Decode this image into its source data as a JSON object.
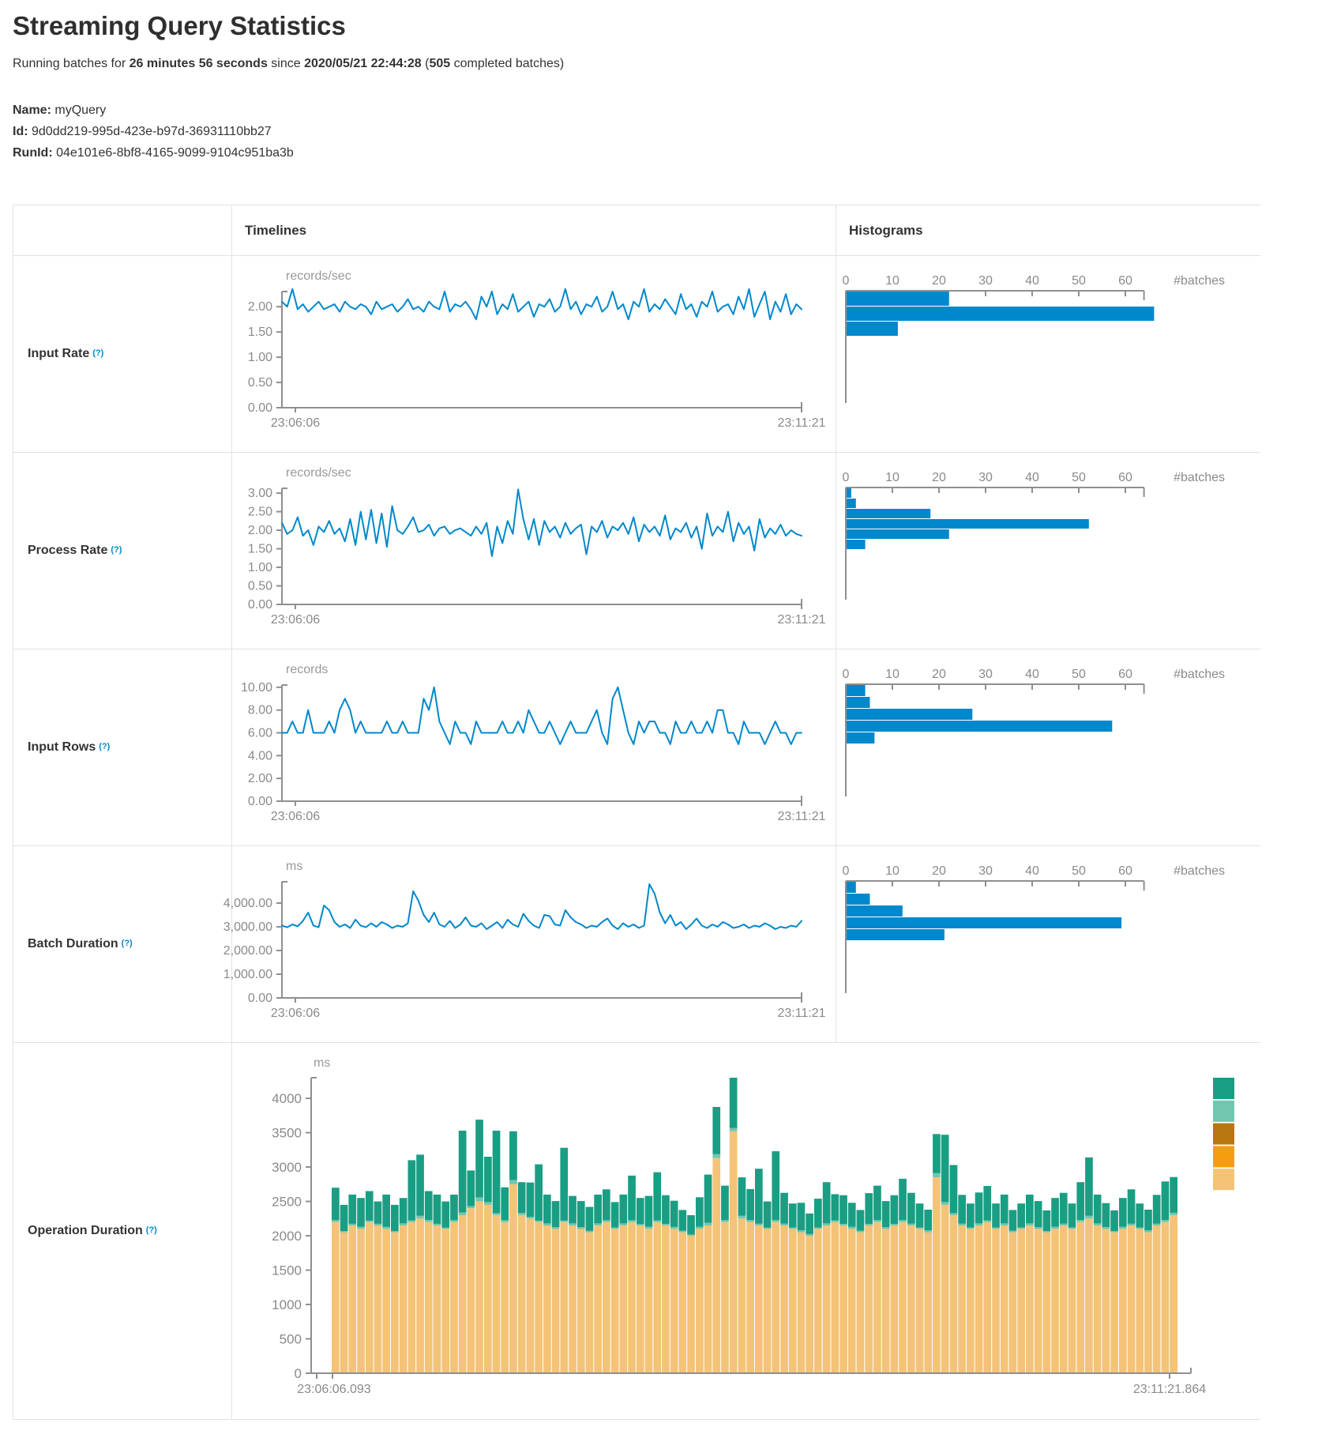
{
  "page": {
    "title": "Streaming Query Statistics",
    "running_prefix": "Running batches for ",
    "duration": "26 minutes 56 seconds",
    "since": " since ",
    "start_time": "2020/05/21 22:44:28",
    "paren_open": " (",
    "completed_batches": "505",
    "completed_suffix": " completed batches)",
    "name_label": "Name:",
    "name_value": "myQuery",
    "id_label": "Id:",
    "id_value": "9d0dd219-995d-423e-b97d-36931110bb27",
    "runid_label": "RunId:",
    "runid_value": "04e101e6-8bf8-4165-9099-9104c951ba3b"
  },
  "colors": {
    "accent_blue": "#0088cc",
    "axis": "#8f8f8f",
    "tick_text": "#8a8a8a",
    "unit_text": "#999999",
    "border": "#e2e2e2",
    "text": "#333333",
    "help": "#0088cc",
    "op_green": "#1a9e83",
    "op_light_teal": "#72c6b0",
    "op_dark_gold": "#b87711",
    "op_orange": "#f49d0e",
    "op_tan": "#f4c377"
  },
  "table": {
    "col_timelines": "Timelines",
    "col_histograms": "Histograms"
  },
  "hist": {
    "ticks": [
      0,
      10,
      20,
      30,
      40,
      50,
      60
    ],
    "axis_label": "#batches"
  },
  "timeline_x": {
    "start": "23:06:06",
    "end": "23:11:21"
  },
  "rows": [
    {
      "label": "Input Rate",
      "help": "(?)",
      "unit": "records/sec",
      "ymax": 2.3,
      "yticks": [
        {
          "v": 2,
          "label": "2.00"
        },
        {
          "v": 1.5,
          "label": "1.50"
        },
        {
          "v": 1,
          "label": "1.00"
        },
        {
          "v": 0.5,
          "label": "0.50"
        },
        {
          "v": 0,
          "label": "0.00"
        }
      ],
      "timeline": {
        "type": "line",
        "values": [
          2.1,
          2.0,
          2.35,
          1.95,
          2.05,
          1.9,
          2.0,
          2.1,
          1.95,
          2.0,
          2.05,
          1.9,
          2.1,
          2.0,
          1.95,
          2.05,
          2.0,
          1.85,
          2.1,
          1.95,
          2.0,
          2.05,
          1.9,
          2.0,
          2.15,
          1.95,
          2.0,
          1.9,
          2.1,
          2.0,
          1.95,
          2.3,
          1.9,
          2.05,
          2.0,
          2.1,
          1.95,
          1.75,
          2.2,
          2.0,
          2.3,
          1.85,
          2.05,
          1.95,
          2.25,
          1.9,
          2.0,
          2.1,
          1.8,
          2.05,
          2.0,
          2.15,
          1.9,
          2.0,
          2.35,
          1.95,
          2.1,
          1.85,
          2.05,
          2.0,
          2.2,
          1.9,
          2.0,
          2.3,
          1.95,
          2.05,
          1.75,
          2.1,
          2.0,
          2.35,
          1.9,
          2.05,
          1.95,
          2.15,
          2.0,
          1.85,
          2.25,
          1.95,
          2.05,
          1.8,
          2.1,
          2.0,
          2.3,
          1.9,
          2.0,
          2.05,
          1.85,
          2.2,
          1.95,
          2.35,
          1.8,
          2.05,
          2.3,
          1.75,
          2.1,
          1.9,
          2.25,
          1.85,
          2.05,
          1.95
        ]
      },
      "histogram": {
        "type": "bar",
        "bins": [
          22,
          66,
          11
        ]
      }
    },
    {
      "label": "Process Rate",
      "help": "(?)",
      "unit": "records/sec",
      "ymax": 3.13,
      "yticks": [
        {
          "v": 3,
          "label": "3.00"
        },
        {
          "v": 2.5,
          "label": "2.50"
        },
        {
          "v": 2,
          "label": "2.00"
        },
        {
          "v": 1.5,
          "label": "1.50"
        },
        {
          "v": 1,
          "label": "1.00"
        },
        {
          "v": 0.5,
          "label": "0.50"
        },
        {
          "v": 0,
          "label": "0.00"
        }
      ],
      "timeline": {
        "type": "line",
        "values": [
          2.2,
          1.9,
          2.0,
          2.35,
          1.85,
          2.0,
          1.6,
          2.1,
          1.95,
          2.25,
          1.9,
          2.05,
          1.7,
          2.3,
          1.6,
          2.5,
          1.75,
          2.55,
          1.65,
          2.45,
          1.55,
          2.65,
          2.0,
          1.9,
          2.1,
          2.35,
          1.95,
          2.0,
          2.15,
          1.85,
          2.05,
          2.1,
          1.9,
          2.0,
          2.05,
          1.95,
          1.85,
          2.1,
          1.9,
          2.2,
          1.3,
          2.1,
          1.65,
          2.25,
          1.9,
          3.1,
          2.3,
          1.75,
          2.3,
          1.6,
          2.25,
          1.95,
          2.1,
          1.8,
          2.2,
          1.9,
          2.05,
          2.15,
          1.35,
          2.1,
          1.95,
          2.25,
          1.8,
          2.1,
          2.0,
          2.2,
          1.9,
          2.35,
          1.7,
          2.15,
          1.95,
          2.1,
          1.85,
          2.4,
          1.75,
          2.05,
          1.95,
          2.2,
          1.8,
          2.1,
          1.5,
          2.45,
          1.85,
          2.1,
          1.95,
          2.5,
          1.7,
          2.2,
          1.9,
          2.1,
          1.45,
          2.3,
          1.8,
          2.05,
          1.9,
          2.15,
          1.85,
          2.0,
          1.9,
          1.85
        ]
      },
      "histogram": {
        "type": "bar",
        "bins": [
          1,
          2,
          18,
          52,
          22,
          4
        ]
      }
    },
    {
      "label": "Input Rows",
      "help": "(?)",
      "unit": "records",
      "ymax": 10.2,
      "yticks": [
        {
          "v": 10,
          "label": "10.00"
        },
        {
          "v": 8,
          "label": "8.00"
        },
        {
          "v": 6,
          "label": "6.00"
        },
        {
          "v": 4,
          "label": "4.00"
        },
        {
          "v": 2,
          "label": "2.00"
        },
        {
          "v": 0,
          "label": "0.00"
        }
      ],
      "timeline": {
        "type": "line",
        "values": [
          6,
          6,
          7,
          6,
          6,
          8,
          6,
          6,
          6,
          7,
          6,
          8,
          9,
          8,
          6,
          7,
          6,
          6,
          6,
          6,
          7,
          6,
          6,
          7,
          6,
          6,
          6,
          9,
          8,
          10,
          7,
          6,
          5,
          7,
          6,
          6,
          5,
          7,
          6,
          6,
          6,
          6,
          7,
          6,
          6,
          7,
          6,
          8,
          7,
          6,
          6,
          7,
          6,
          5,
          6,
          7,
          6,
          6,
          6,
          7,
          8,
          6,
          5,
          9,
          10,
          8,
          6,
          5,
          7,
          6,
          7,
          7,
          6,
          6,
          5,
          7,
          6,
          6,
          7,
          6,
          6,
          7,
          6,
          8,
          8,
          6,
          6,
          5,
          7,
          6,
          6,
          6,
          5,
          6,
          7,
          6,
          6,
          5,
          6,
          6
        ]
      },
      "histogram": {
        "type": "bar",
        "bins": [
          4,
          5,
          27,
          57,
          6
        ]
      }
    },
    {
      "label": "Batch Duration",
      "help": "(?)",
      "unit": "ms",
      "ymax": 4900,
      "yticks": [
        {
          "v": 4000,
          "label": "4,000.00"
        },
        {
          "v": 3000,
          "label": "3,000.00"
        },
        {
          "v": 2000,
          "label": "2,000.00"
        },
        {
          "v": 1000,
          "label": "1,000.00"
        },
        {
          "v": 0,
          "label": "0.00"
        }
      ],
      "timeline": {
        "type": "line",
        "values": [
          3050,
          2980,
          3100,
          3020,
          3250,
          3600,
          3050,
          2980,
          3900,
          3700,
          3200,
          3000,
          3100,
          2950,
          3300,
          3050,
          2980,
          3150,
          3000,
          3200,
          3100,
          2950,
          3050,
          3000,
          3150,
          4500,
          4100,
          3500,
          3200,
          3600,
          3100,
          3000,
          3250,
          2950,
          3100,
          3400,
          3050,
          3000,
          3150,
          2900,
          3050,
          3200,
          2950,
          3300,
          3100,
          3000,
          3550,
          3250,
          3050,
          2950,
          3500,
          3450,
          3100,
          3050,
          3700,
          3400,
          3200,
          3100,
          2950,
          3050,
          3000,
          3200,
          3350,
          3050,
          2900,
          3150,
          3000,
          3100,
          2950,
          3050,
          4800,
          4400,
          3600,
          3150,
          3500,
          3050,
          3200,
          2900,
          3100,
          3350,
          3050,
          2950,
          3100,
          3000,
          3200,
          3100,
          2950,
          3000,
          3100,
          2950,
          3050,
          3000,
          3150,
          3050,
          2900,
          3000,
          2950,
          3050,
          3000,
          3250
        ]
      },
      "histogram": {
        "type": "bar",
        "bins": [
          2,
          5,
          12,
          59,
          21
        ]
      }
    }
  ],
  "operation_duration": {
    "label": "Operation Duration",
    "help": "(?)",
    "unit": "ms",
    "ymax": 4300,
    "yticks": [
      {
        "v": 4000,
        "label": "4000"
      },
      {
        "v": 3500,
        "label": "3500"
      },
      {
        "v": 3000,
        "label": "3000"
      },
      {
        "v": 2500,
        "label": "2500"
      },
      {
        "v": 2000,
        "label": "2000"
      },
      {
        "v": 1500,
        "label": "1500"
      },
      {
        "v": 1000,
        "label": "1000"
      },
      {
        "v": 500,
        "label": "500"
      },
      {
        "v": 0,
        "label": "0"
      }
    ],
    "x_start": "23:06:06.093",
    "x_end": "23:11:21.864",
    "chart_type": "stacked-bar",
    "series": [
      {
        "name": "bottom-segment",
        "color_key": "op_tan",
        "values": [
          2200,
          2050,
          2150,
          2100,
          2200,
          2150,
          2100,
          2050,
          2150,
          2200,
          2250,
          2200,
          2150,
          2100,
          2200,
          2300,
          2400,
          2500,
          2450,
          2300,
          2200,
          2750,
          2300,
          2250,
          2200,
          2150,
          2100,
          2200,
          2150,
          2100,
          2050,
          2150,
          2200,
          2100,
          2150,
          2200,
          2150,
          2100,
          2200,
          2150,
          2100,
          2050,
          2000,
          2100,
          2150,
          3130,
          2200,
          3520,
          2250,
          2200,
          2150,
          2100,
          2200,
          2150,
          2100,
          2050,
          2000,
          2100,
          2150,
          2200,
          2150,
          2100,
          2050,
          2150,
          2200,
          2100,
          2150,
          2200,
          2150,
          2100,
          2050,
          2850,
          2450,
          2300,
          2150,
          2100,
          2150,
          2200,
          2100,
          2150,
          2050,
          2100,
          2150,
          2100,
          2050,
          2100,
          2150,
          2100,
          2200,
          2250,
          2150,
          2100,
          2050,
          2100,
          2150,
          2100,
          2050,
          2150,
          2200,
          2300
        ]
      },
      {
        "name": "middle-segment",
        "color_key": "op_light_teal",
        "values": [
          30,
          20,
          25,
          30,
          20,
          25,
          30,
          20,
          30,
          25,
          40,
          30,
          25,
          20,
          30,
          40,
          30,
          60,
          40,
          30,
          25,
          60,
          30,
          25,
          20,
          30,
          25,
          20,
          30,
          25,
          20,
          30,
          25,
          20,
          30,
          25,
          20,
          30,
          25,
          20,
          30,
          25,
          20,
          30,
          40,
          60,
          30,
          50,
          40,
          30,
          25,
          20,
          30,
          25,
          20,
          30,
          25,
          20,
          30,
          25,
          20,
          30,
          25,
          20,
          30,
          25,
          20,
          30,
          25,
          20,
          30,
          60,
          40,
          30,
          25,
          20,
          30,
          25,
          20,
          30,
          25,
          20,
          30,
          25,
          20,
          30,
          25,
          20,
          30,
          40,
          30,
          25,
          20,
          30,
          25,
          20,
          30,
          25,
          30,
          35
        ]
      },
      {
        "name": "top-segment",
        "color_key": "op_green",
        "values": [
          470,
          380,
          425,
          420,
          430,
          325,
          470,
          380,
          370,
          875,
          890,
          420,
          425,
          380,
          370,
          1190,
          520,
          1130,
          660,
          1200,
          480,
          710,
          450,
          500,
          820,
          420,
          380,
          1060,
          400,
          380,
          350,
          420,
          450,
          370,
          420,
          650,
          380,
          450,
          700,
          420,
          380,
          300,
          280,
          430,
          700,
          685,
          500,
          730,
          560,
          450,
          800,
          380,
          1000,
          450,
          350,
          400,
          300,
          420,
          600,
          380,
          420,
          350,
          300,
          450,
          500,
          380,
          420,
          600,
          450,
          350,
          300,
          570,
          980,
          700,
          420,
          350,
          450,
          500,
          350,
          420,
          300,
          350,
          420,
          380,
          300,
          420,
          450,
          350,
          550,
          850,
          420,
          350,
          300,
          420,
          500,
          350,
          300,
          420,
          560,
          520
        ]
      }
    ],
    "legend_color_keys": [
      "op_green",
      "op_light_teal",
      "op_dark_gold",
      "op_orange",
      "op_tan"
    ]
  }
}
